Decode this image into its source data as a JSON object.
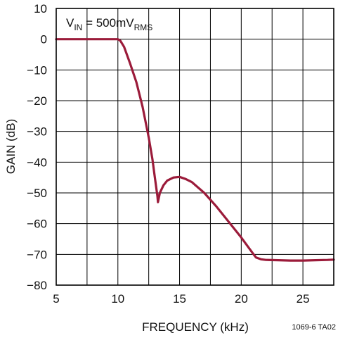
{
  "chart_data": {
    "type": "line",
    "xlabel": "FREQUENCY (kHz)",
    "ylabel": "GAIN (dB)",
    "xlim": [
      5,
      27.5
    ],
    "ylim": [
      -80,
      10
    ],
    "xticks": [
      5,
      10,
      15,
      20,
      25
    ],
    "yticks": [
      10,
      0,
      -10,
      -20,
      -30,
      -40,
      -50,
      -60,
      -70,
      -80
    ],
    "xgrid_step": 2.5,
    "ygrid_step": 10,
    "grid": true,
    "annotation": {
      "base": "V",
      "sub1": "IN",
      "mid": " = 500mV",
      "sub2": "RMS"
    },
    "figure_code": "1069-6 TA02",
    "line_color": "#9b1b3a",
    "series": [
      {
        "x": [
          5,
          6,
          7,
          8,
          9,
          9.5,
          10,
          10.2,
          10.5,
          11,
          11.5,
          12,
          12.5,
          12.8,
          13.0,
          13.2,
          13.25,
          13.4,
          13.7,
          14,
          14.5,
          15,
          15.5,
          16,
          17,
          18,
          19,
          20,
          21,
          21.2,
          21.6,
          22,
          23,
          24,
          25,
          26,
          27,
          27.5
        ],
        "y": [
          0,
          0,
          0,
          0,
          0,
          0,
          0,
          -0.5,
          -2.5,
          -8,
          -14,
          -22,
          -32,
          -39,
          -45,
          -51,
          -53,
          -50,
          -47.5,
          -46,
          -45,
          -44.8,
          -45.5,
          -46.5,
          -50,
          -54.5,
          -59.5,
          -64.5,
          -70,
          -71,
          -71.6,
          -71.8,
          -71.9,
          -72,
          -72,
          -71.9,
          -71.8,
          -71.7
        ]
      }
    ]
  }
}
